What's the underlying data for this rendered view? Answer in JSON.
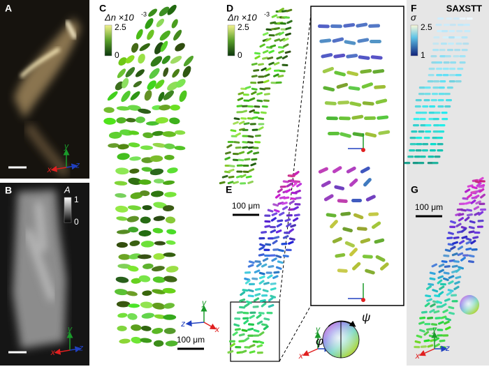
{
  "panel_a": {
    "label": "A",
    "axis_labels": {
      "x": "x",
      "y": "y",
      "z": "z"
    }
  },
  "panel_b": {
    "label": "B",
    "colorbar": {
      "title": "A",
      "max": "1",
      "min": "0"
    },
    "axis_labels": {
      "x": "x",
      "y": "y",
      "z": "z"
    }
  },
  "panel_c": {
    "label": "C",
    "colorbar": {
      "title": "Δn ×10",
      "exponent": "-3",
      "max": "2.5",
      "min": "0"
    },
    "scale_bar": "100 μm",
    "axis_labels": {
      "x": "x",
      "y": "y",
      "z": "z"
    }
  },
  "panel_d": {
    "label": "D",
    "colorbar": {
      "title": "Δn ×10",
      "exponent": "-3",
      "max": "2.5",
      "min": "0"
    }
  },
  "panel_e": {
    "label": "E",
    "scale_bar": "100 μm",
    "axis_labels": {
      "x": "x",
      "y": "y",
      "z": "z"
    },
    "sphere": {
      "psi": "ψ",
      "phi": "φ"
    }
  },
  "panel_f": {
    "label": "F",
    "title": "SAXSTT",
    "colorbar": {
      "title": "σ",
      "max": "2.5",
      "min": "1"
    }
  },
  "panel_g": {
    "label": "G",
    "scale_bar": "100 μm",
    "axis_labels": {
      "x": "x",
      "y": "y",
      "z": "z"
    }
  }
}
